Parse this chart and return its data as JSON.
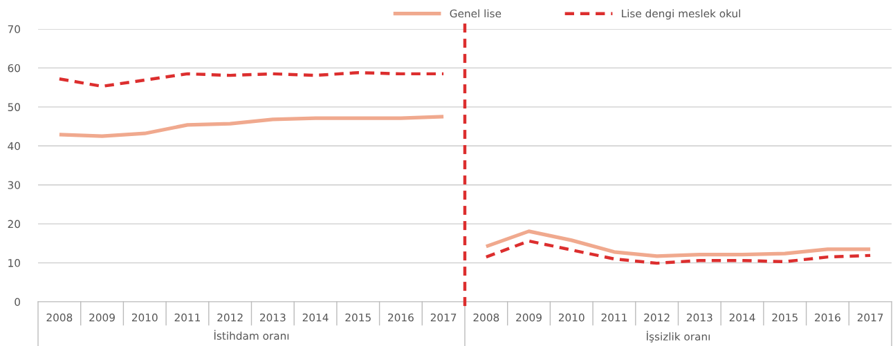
{
  "chart_data": {
    "type": "line",
    "categories": [
      "2008",
      "2009",
      "2010",
      "2011",
      "2012",
      "2013",
      "2014",
      "2015",
      "2016",
      "2017",
      "2008",
      "2009",
      "2010",
      "2011",
      "2012",
      "2013",
      "2014",
      "2015",
      "2016",
      "2017"
    ],
    "series": [
      {
        "name": "Genel lise",
        "color": "#f0a98e",
        "line_style": "solid",
        "values": [
          42.9,
          42.5,
          43.2,
          45.4,
          45.7,
          46.8,
          47.1,
          47.1,
          47.1,
          47.5,
          14.2,
          18.1,
          15.8,
          12.8,
          11.7,
          12.1,
          12.1,
          12.4,
          13.5,
          13.5
        ]
      },
      {
        "name": "Lise dengi meslek okul",
        "color": "#dc2e2e",
        "line_style": "dashed",
        "values": [
          57.2,
          55.3,
          56.9,
          58.5,
          58.1,
          58.5,
          58.1,
          58.8,
          58.5,
          58.5,
          11.5,
          15.6,
          13.3,
          11.0,
          9.9,
          10.6,
          10.6,
          10.3,
          11.5,
          11.9
        ]
      }
    ],
    "annotations": [
      "İstihdam oranı",
      "İşsizlik oranı"
    ],
    "ylim": [
      0,
      70
    ],
    "yticks": [
      0,
      10,
      20,
      30,
      40,
      50,
      60,
      70
    ],
    "grid": "y",
    "legend": "top",
    "marker": "none"
  }
}
